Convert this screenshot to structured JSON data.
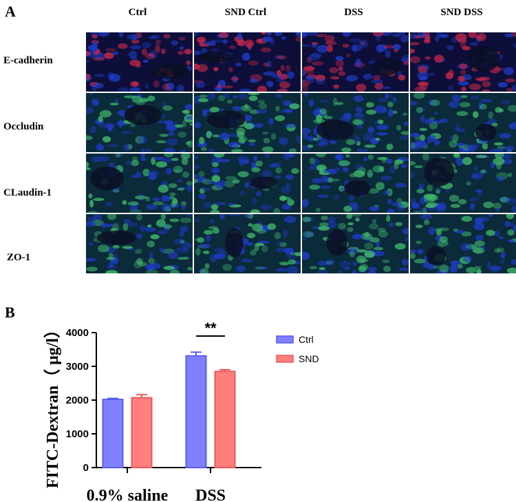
{
  "panel_a": {
    "letter": "A",
    "columns": [
      "Ctrl",
      "SND Ctrl",
      "DSS",
      "SND DSS"
    ],
    "rows": [
      {
        "label": "E-cadherin",
        "stain": "red"
      },
      {
        "label": "Occludin",
        "stain": "green"
      },
      {
        "label": "CLaudin-1",
        "stain": "green"
      },
      {
        "label": "ZO-1",
        "stain": "green"
      }
    ],
    "colors": {
      "nucleus": "#1f3cc8",
      "red": "#c8284a",
      "green": "#3fb86a",
      "background": "#0a0f24"
    }
  },
  "panel_b": {
    "letter": "B",
    "chart_data": {
      "type": "bar",
      "title": "",
      "ylabel": "FITC-Dextran（ μg/l）",
      "xlabel": "",
      "categories": [
        "0.9% saline",
        "DSS"
      ],
      "series": [
        {
          "name": "Ctrl",
          "values": [
            2020,
            3310
          ],
          "errors": [
            30,
            110
          ],
          "color": "#8080ff",
          "edge": "#5a5af0"
        },
        {
          "name": "SND",
          "values": [
            2070,
            2850
          ],
          "errors": [
            90,
            50
          ],
          "color": "#ff7f7f",
          "edge": "#e85a5a"
        }
      ],
      "ylim": [
        0,
        4000
      ],
      "yticks": [
        "0",
        "1000",
        "2000",
        "3000",
        "4000"
      ],
      "annotations": [
        {
          "text": "**",
          "category": "DSS"
        }
      ],
      "legend_position": "right",
      "grid": false
    }
  }
}
